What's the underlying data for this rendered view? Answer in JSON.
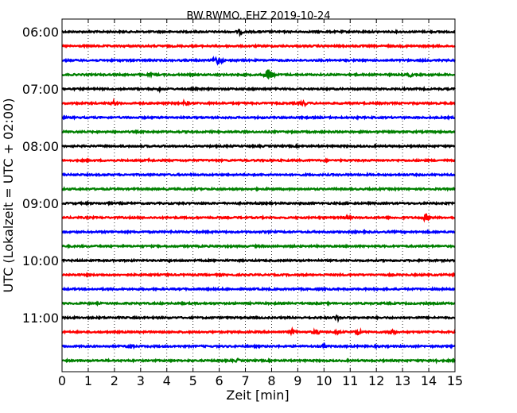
{
  "chart_data": {
    "type": "line",
    "title": "BW.RWMO..EHZ 2019-10-24",
    "xlabel": "Zeit  [min]",
    "ylabel": "UTC (Lokalzeit = UTC + 02:00)",
    "xlim": [
      0,
      15
    ],
    "x_ticks": [
      0,
      1,
      2,
      3,
      4,
      5,
      6,
      7,
      8,
      9,
      10,
      11,
      12,
      13,
      14,
      15
    ],
    "y_tick_labels": [
      "06:00",
      "07:00",
      "08:00",
      "09:00",
      "10:00",
      "11:00"
    ],
    "grid": "vertical dotted",
    "trace_colors": [
      "#000000",
      "#ff0000",
      "#0000ff",
      "#008000"
    ],
    "traces": [
      {
        "start": "06:00",
        "color": "#000000",
        "events": [
          {
            "minute": 6.8,
            "amplitude": 0.3
          }
        ]
      },
      {
        "start": "06:15",
        "color": "#ff0000",
        "events": []
      },
      {
        "start": "06:30",
        "color": "#0000ff",
        "events": [
          {
            "minute": 5.95,
            "amplitude": 0.55
          }
        ]
      },
      {
        "start": "06:45",
        "color": "#008000",
        "events": [
          {
            "minute": 3.4,
            "amplitude": 0.2
          },
          {
            "minute": 7.9,
            "amplitude": 0.75
          },
          {
            "minute": 13.3,
            "amplitude": 0.25
          }
        ]
      },
      {
        "start": "07:00",
        "color": "#000000",
        "events": [
          {
            "minute": 3.7,
            "amplitude": 0.2
          }
        ]
      },
      {
        "start": "07:15",
        "color": "#ff0000",
        "events": [
          {
            "minute": 2.0,
            "amplitude": 0.3
          },
          {
            "minute": 4.7,
            "amplitude": 0.3
          },
          {
            "minute": 9.2,
            "amplitude": 0.35
          }
        ]
      },
      {
        "start": "07:30",
        "color": "#0000ff",
        "events": []
      },
      {
        "start": "07:45",
        "color": "#008000",
        "events": []
      },
      {
        "start": "08:00",
        "color": "#000000",
        "events": []
      },
      {
        "start": "08:15",
        "color": "#ff0000",
        "events": [
          {
            "minute": 3.3,
            "amplitude": 0.15
          },
          {
            "minute": 7.9,
            "amplitude": 0.15
          }
        ]
      },
      {
        "start": "08:30",
        "color": "#0000ff",
        "events": []
      },
      {
        "start": "08:45",
        "color": "#008000",
        "events": []
      },
      {
        "start": "09:00",
        "color": "#000000",
        "events": []
      },
      {
        "start": "09:15",
        "color": "#ff0000",
        "events": [
          {
            "minute": 10.9,
            "amplitude": 0.25
          },
          {
            "minute": 13.9,
            "amplitude": 0.4
          }
        ]
      },
      {
        "start": "09:30",
        "color": "#0000ff",
        "events": [
          {
            "minute": 4.2,
            "amplitude": 0.15
          }
        ]
      },
      {
        "start": "09:45",
        "color": "#008000",
        "events": []
      },
      {
        "start": "10:00",
        "color": "#000000",
        "events": [
          {
            "minute": 4.1,
            "amplitude": 0.15
          }
        ]
      },
      {
        "start": "10:15",
        "color": "#ff0000",
        "events": []
      },
      {
        "start": "10:30",
        "color": "#0000ff",
        "events": []
      },
      {
        "start": "10:45",
        "color": "#008000",
        "events": []
      },
      {
        "start": "11:00",
        "color": "#000000",
        "events": [
          {
            "minute": 10.5,
            "amplitude": 0.3
          }
        ]
      },
      {
        "start": "11:15",
        "color": "#ff0000",
        "events": [
          {
            "minute": 8.8,
            "amplitude": 0.3
          },
          {
            "minute": 9.7,
            "amplitude": 0.35
          },
          {
            "minute": 10.5,
            "amplitude": 0.3
          },
          {
            "minute": 11.3,
            "amplitude": 0.3
          },
          {
            "minute": 12.6,
            "amplitude": 0.4
          }
        ]
      },
      {
        "start": "11:30",
        "color": "#0000ff",
        "events": [
          {
            "minute": 2.6,
            "amplitude": 0.3
          },
          {
            "minute": 10.0,
            "amplitude": 0.2
          }
        ]
      },
      {
        "start": "11:45",
        "color": "#008000",
        "events": [
          {
            "minute": 6.7,
            "amplitude": 0.2
          },
          {
            "minute": 14.2,
            "amplitude": 0.3
          }
        ]
      }
    ]
  }
}
